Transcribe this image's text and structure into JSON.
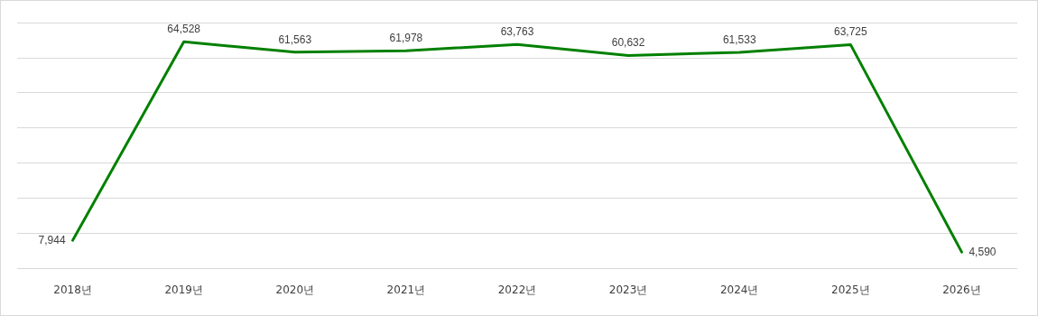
{
  "chart_data": {
    "type": "line",
    "categories": [
      "2018년",
      "2019년",
      "2020년",
      "2021년",
      "2022년",
      "2023년",
      "2024년",
      "2025년",
      "2026년"
    ],
    "series": [
      {
        "color": "#008000",
        "values": [
          7944,
          64528,
          61563,
          61978,
          63763,
          60632,
          61533,
          63725,
          4590
        ],
        "value_labels": [
          "7,944",
          "64,528",
          "61,563",
          "61,978",
          "63,763",
          "60,632",
          "61,533",
          "63,725",
          "4,590"
        ]
      }
    ],
    "tick_labels": "x",
    "grid": "y",
    "marker": "none",
    "line_style": "solid"
  }
}
